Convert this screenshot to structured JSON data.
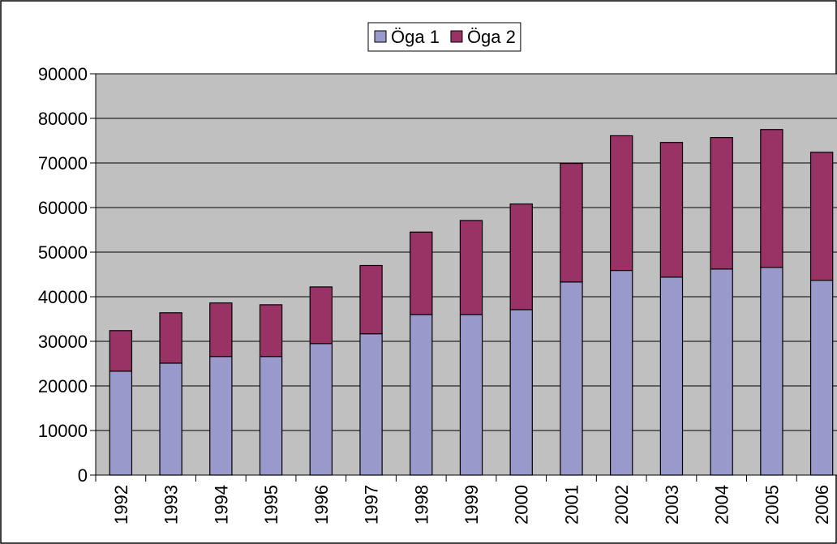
{
  "chart_data": {
    "type": "stacked_bar",
    "categories": [
      "1992",
      "1993",
      "1994",
      "1995",
      "1996",
      "1997",
      "1998",
      "1999",
      "2000",
      "2001",
      "2002",
      "2003",
      "2004",
      "2005",
      "2006"
    ],
    "series": [
      {
        "name": "Öga 1",
        "color": "#9999cc",
        "values": [
          23300,
          25100,
          26600,
          26600,
          29500,
          31700,
          36000,
          36000,
          37100,
          43300,
          45900,
          44400,
          46200,
          46600,
          43700
        ]
      },
      {
        "name": "Öga 2",
        "color": "#993366",
        "values": [
          9100,
          11300,
          12000,
          11600,
          12700,
          15300,
          18500,
          21100,
          23700,
          26600,
          30200,
          30200,
          29500,
          30900,
          28700
        ]
      }
    ],
    "ylim": [
      0,
      90000
    ],
    "yticks": [
      0,
      10000,
      20000,
      30000,
      40000,
      50000,
      60000,
      70000,
      80000,
      90000
    ],
    "grid": true,
    "legend": "top"
  }
}
